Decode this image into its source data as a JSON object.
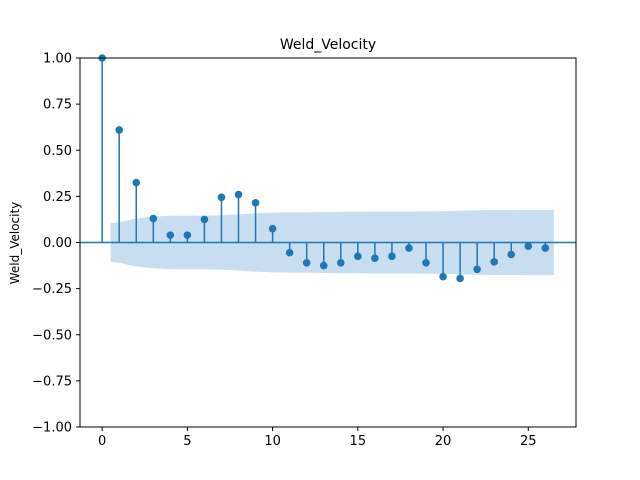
{
  "chart_data": {
    "type": "scatter",
    "subtype": "acf-stem",
    "title": "Weld_Velocity",
    "xlabel": "",
    "ylabel": "Weld_Velocity",
    "xlim": [
      -1.3,
      27.8
    ],
    "ylim": [
      -1.0,
      1.0
    ],
    "xticks": [
      0,
      5,
      10,
      15,
      20,
      25
    ],
    "yticks": [
      -1.0,
      -0.75,
      -0.5,
      -0.25,
      0.0,
      0.25,
      0.5,
      0.75,
      1.0
    ],
    "ytick_labels": [
      "−1.00",
      "−0.75",
      "−0.50",
      "−0.25",
      "0.00",
      "0.25",
      "0.50",
      "0.75",
      "1.00"
    ],
    "grid": false,
    "colors": {
      "stem": "#1f77b4",
      "band": "#c6dbef",
      "zero_line": "#1f77b4"
    },
    "lags": [
      0,
      1,
      2,
      3,
      4,
      5,
      6,
      7,
      8,
      9,
      10,
      11,
      12,
      13,
      14,
      15,
      16,
      17,
      18,
      19,
      20,
      21,
      22,
      23,
      24,
      25,
      26
    ],
    "values": [
      1.0,
      0.61,
      0.325,
      0.13,
      0.04,
      0.04,
      0.125,
      0.245,
      0.26,
      0.215,
      0.075,
      -0.055,
      -0.11,
      -0.125,
      -0.11,
      -0.075,
      -0.085,
      -0.075,
      -0.03,
      -0.11,
      -0.185,
      -0.195,
      -0.145,
      -0.105,
      -0.065,
      -0.02,
      -0.03
    ],
    "confidence_band": {
      "x": [
        0.5,
        1,
        2,
        3,
        4,
        5,
        6,
        7,
        8,
        9,
        10,
        11,
        12,
        13,
        14,
        15,
        16,
        17,
        18,
        19,
        20,
        21,
        22,
        23,
        24,
        25,
        26,
        26.5
      ],
      "upper": [
        0.105,
        0.11,
        0.13,
        0.14,
        0.145,
        0.145,
        0.145,
        0.148,
        0.152,
        0.158,
        0.162,
        0.163,
        0.163,
        0.165,
        0.166,
        0.167,
        0.168,
        0.168,
        0.168,
        0.169,
        0.17,
        0.172,
        0.175,
        0.176,
        0.176,
        0.177,
        0.177,
        0.177
      ]
    }
  }
}
